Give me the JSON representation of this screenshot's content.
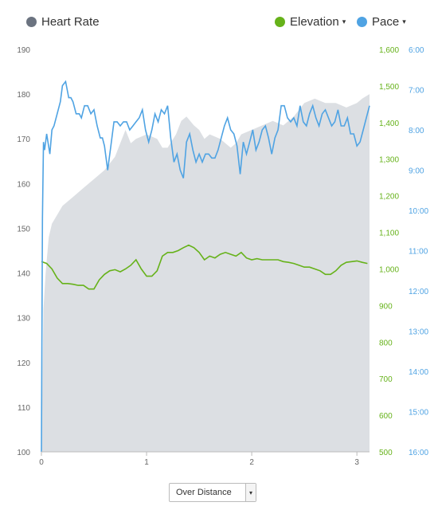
{
  "legend": {
    "heart_rate": {
      "label": "Heart Rate",
      "color": "#6b7380"
    },
    "elevation": {
      "label": "Elevation",
      "color": "#66b21a",
      "dropdown": "▾"
    },
    "pace": {
      "label": "Pace",
      "color": "#4fa3e3",
      "dropdown": "▾"
    }
  },
  "controls": {
    "x_axis_mode": {
      "value": "Over Distance",
      "arrow": "▾"
    }
  },
  "chart_data": {
    "type": "area",
    "x_ticks": [
      0,
      1,
      2,
      3
    ],
    "xlim": [
      0,
      3.12
    ],
    "heart_rate": {
      "name": "Heart Rate",
      "color": "#dcdfe3",
      "ylim": [
        100,
        190
      ],
      "ticks": [
        100,
        110,
        120,
        130,
        140,
        150,
        160,
        170,
        180,
        190
      ],
      "x": [
        0,
        0.02,
        0.04,
        0.07,
        0.1,
        0.15,
        0.2,
        0.3,
        0.4,
        0.5,
        0.6,
        0.7,
        0.75,
        0.8,
        0.85,
        0.9,
        1.0,
        1.1,
        1.15,
        1.2,
        1.28,
        1.33,
        1.38,
        1.45,
        1.5,
        1.55,
        1.6,
        1.7,
        1.8,
        1.85,
        1.9,
        2.0,
        2.1,
        2.2,
        2.3,
        2.4,
        2.5,
        2.6,
        2.7,
        2.8,
        2.9,
        3.0,
        3.05,
        3.12
      ],
      "values": [
        100,
        132,
        140,
        148,
        151,
        153,
        155,
        157,
        159,
        161,
        163,
        166,
        169,
        172,
        169,
        170,
        171,
        170,
        168,
        168,
        171,
        174,
        175,
        173,
        172,
        170,
        171,
        170,
        168,
        169,
        171,
        172,
        173,
        174,
        173,
        175,
        178,
        179,
        178,
        178,
        177,
        178,
        179,
        180
      ]
    },
    "elevation": {
      "name": "Elevation",
      "color": "#66b21a",
      "ylim": [
        500,
        1600
      ],
      "ticks": [
        500,
        600,
        700,
        800,
        900,
        1000,
        1100,
        1200,
        1300,
        1400,
        1500,
        1600
      ],
      "x": [
        0,
        0.05,
        0.1,
        0.15,
        0.2,
        0.25,
        0.3,
        0.35,
        0.4,
        0.45,
        0.5,
        0.55,
        0.6,
        0.65,
        0.7,
        0.75,
        0.8,
        0.85,
        0.9,
        0.95,
        1.0,
        1.05,
        1.1,
        1.15,
        1.2,
        1.25,
        1.3,
        1.35,
        1.4,
        1.45,
        1.5,
        1.55,
        1.6,
        1.65,
        1.7,
        1.75,
        1.8,
        1.85,
        1.9,
        1.95,
        2.0,
        2.05,
        2.1,
        2.15,
        2.2,
        2.25,
        2.3,
        2.35,
        2.4,
        2.45,
        2.5,
        2.55,
        2.6,
        2.65,
        2.7,
        2.75,
        2.8,
        2.85,
        2.9,
        2.95,
        3.0,
        3.05,
        3.1
      ],
      "values": [
        1020,
        1015,
        1000,
        975,
        960,
        960,
        958,
        955,
        955,
        945,
        945,
        970,
        985,
        995,
        998,
        992,
        1000,
        1010,
        1025,
        1000,
        980,
        980,
        995,
        1035,
        1045,
        1045,
        1050,
        1058,
        1065,
        1058,
        1045,
        1025,
        1035,
        1030,
        1040,
        1045,
        1040,
        1035,
        1045,
        1030,
        1025,
        1028,
        1025,
        1025,
        1025,
        1025,
        1020,
        1018,
        1015,
        1010,
        1005,
        1005,
        1000,
        995,
        985,
        985,
        995,
        1010,
        1018,
        1020,
        1022,
        1018,
        1015
      ]
    },
    "pace": {
      "name": "Pace",
      "color": "#4fa3e3",
      "ylim_minutes": [
        6,
        16
      ],
      "ticks": [
        "6:00",
        "7:00",
        "8:00",
        "9:00",
        "10:00",
        "11:00",
        "12:00",
        "13:00",
        "14:00",
        "15:00",
        "16:00"
      ],
      "x": [
        0,
        0.01,
        0.02,
        0.03,
        0.05,
        0.08,
        0.1,
        0.12,
        0.15,
        0.18,
        0.2,
        0.23,
        0.26,
        0.28,
        0.3,
        0.33,
        0.36,
        0.38,
        0.41,
        0.44,
        0.47,
        0.5,
        0.53,
        0.56,
        0.58,
        0.6,
        0.63,
        0.66,
        0.69,
        0.72,
        0.75,
        0.78,
        0.81,
        0.84,
        0.87,
        0.9,
        0.93,
        0.96,
        0.99,
        1.02,
        1.05,
        1.08,
        1.11,
        1.14,
        1.17,
        1.2,
        1.23,
        1.26,
        1.29,
        1.32,
        1.35,
        1.38,
        1.41,
        1.44,
        1.47,
        1.5,
        1.53,
        1.56,
        1.59,
        1.62,
        1.65,
        1.68,
        1.71,
        1.74,
        1.77,
        1.8,
        1.83,
        1.86,
        1.89,
        1.92,
        1.95,
        1.98,
        2.01,
        2.04,
        2.07,
        2.1,
        2.13,
        2.16,
        2.19,
        2.22,
        2.25,
        2.28,
        2.31,
        2.34,
        2.37,
        2.4,
        2.43,
        2.46,
        2.49,
        2.52,
        2.55,
        2.58,
        2.61,
        2.64,
        2.67,
        2.7,
        2.73,
        2.76,
        2.79,
        2.82,
        2.85,
        2.88,
        2.91,
        2.94,
        2.97,
        3.0,
        3.03,
        3.06,
        3.09,
        3.12
      ],
      "values_minutes": [
        16.0,
        10.2,
        8.3,
        8.5,
        8.1,
        8.6,
        8.0,
        7.9,
        7.6,
        7.3,
        6.9,
        6.8,
        7.2,
        7.2,
        7.3,
        7.6,
        7.6,
        7.7,
        7.4,
        7.4,
        7.6,
        7.5,
        7.9,
        8.2,
        8.2,
        8.4,
        9.0,
        8.4,
        7.8,
        7.8,
        7.9,
        7.8,
        7.8,
        8.0,
        7.9,
        7.8,
        7.7,
        7.5,
        8.0,
        8.3,
        8.0,
        7.6,
        7.8,
        7.5,
        7.6,
        7.4,
        8.2,
        8.8,
        8.6,
        9.0,
        9.2,
        8.3,
        8.1,
        8.5,
        8.8,
        8.6,
        8.8,
        8.6,
        8.6,
        8.7,
        8.7,
        8.5,
        8.2,
        7.9,
        7.7,
        8.0,
        8.1,
        8.4,
        9.1,
        8.3,
        8.6,
        8.3,
        8.0,
        8.5,
        8.3,
        8.0,
        7.9,
        8.2,
        8.6,
        8.2,
        8.0,
        7.4,
        7.4,
        7.7,
        7.8,
        7.7,
        7.9,
        7.4,
        7.8,
        7.9,
        7.6,
        7.4,
        7.7,
        7.9,
        7.6,
        7.5,
        7.7,
        7.9,
        7.8,
        7.5,
        7.9,
        7.9,
        7.7,
        8.1,
        8.1,
        8.4,
        8.3,
        8.0,
        7.7,
        7.4
      ]
    }
  }
}
